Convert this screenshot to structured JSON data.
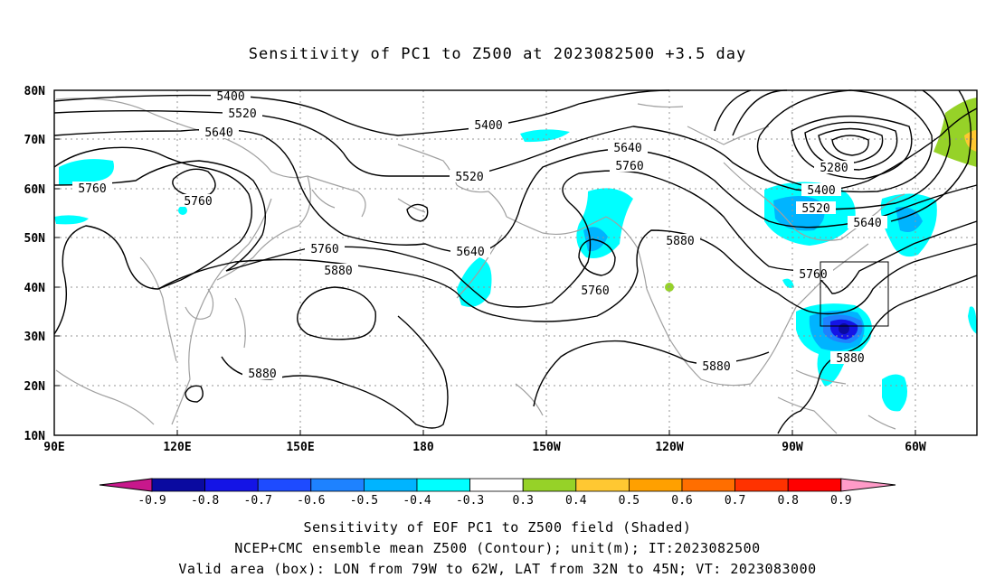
{
  "title": "Sensitivity of PC1 to Z500 at 2023082500 +3.5 day",
  "lat_labels": [
    "80N",
    "70N",
    "60N",
    "50N",
    "40N",
    "30N",
    "20N",
    "10N"
  ],
  "lon_labels": [
    "90E",
    "120E",
    "150E",
    "180",
    "150W",
    "120W",
    "90W",
    "60W"
  ],
  "contour_labels": [
    {
      "text": "5400"
    },
    {
      "text": "5520"
    },
    {
      "text": "5640"
    },
    {
      "text": "5760"
    },
    {
      "text": "5760"
    },
    {
      "text": "5400"
    },
    {
      "text": "5520"
    },
    {
      "text": "5640"
    },
    {
      "text": "5760"
    },
    {
      "text": "5760"
    },
    {
      "text": "5880"
    },
    {
      "text": "5640"
    },
    {
      "text": "5760"
    },
    {
      "text": "5880"
    },
    {
      "text": "5280"
    },
    {
      "text": "5400"
    },
    {
      "text": "5520"
    },
    {
      "text": "5640"
    },
    {
      "text": "5760"
    },
    {
      "text": "5880"
    },
    {
      "text": "5880"
    },
    {
      "text": "5880"
    }
  ],
  "colorbar": {
    "labels": [
      "-0.9",
      "-0.8",
      "-0.7",
      "-0.6",
      "-0.5",
      "-0.4",
      "-0.3",
      "0.3",
      "0.4",
      "0.5",
      "0.6",
      "0.7",
      "0.8",
      "0.9"
    ],
    "colors": [
      "#0a0aa0",
      "#1414e6",
      "#1e4bff",
      "#1e82ff",
      "#00b4ff",
      "#00ffff",
      "#ffffff",
      "#96d228",
      "#ffc832",
      "#ffa000",
      "#ff6e00",
      "#ff3200",
      "#ff0000"
    ],
    "under_color": "#c8188c",
    "over_color": "#ff9bc8"
  },
  "footer": {
    "line1": "Sensitivity of EOF PC1 to Z500 field (Shaded)",
    "line2": "NCEP+CMC ensemble mean Z500 (Contour); unit(m); IT:2023082500",
    "line3": "Valid area (box): LON from 79W to 62W, LAT from 32N to 45N; VT: 2023083000"
  },
  "colors": {
    "contour": "#000000",
    "coast": "#a0a0a0",
    "grid": "#969696"
  }
}
